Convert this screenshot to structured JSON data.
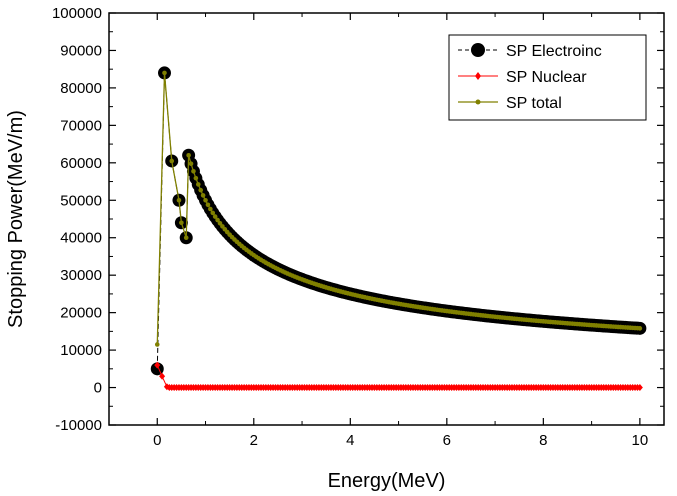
{
  "chart_data": {
    "type": "line",
    "title": "",
    "xlabel": "Energy(MeV)",
    "ylabel": "Stopping Power(MeV/m)",
    "xlim": [
      -1,
      10.5
    ],
    "ylim": [
      -10000,
      100000
    ],
    "xticks": [
      0,
      2,
      4,
      6,
      8,
      10
    ],
    "yticks": [
      -10000,
      0,
      10000,
      20000,
      30000,
      40000,
      50000,
      60000,
      70000,
      80000,
      90000,
      100000
    ],
    "xtick_labels": [
      "0",
      "2",
      "4",
      "6",
      "8",
      "10"
    ],
    "ytick_labels": [
      "-10000",
      "0",
      "10000",
      "20000",
      "30000",
      "40000",
      "50000",
      "60000",
      "70000",
      "80000",
      "90000",
      "100000"
    ],
    "legend_position": "top-right",
    "energy_step": 0.05,
    "energy_max": 10,
    "series": [
      {
        "name": "SP Electroinc",
        "color": "#000000",
        "marker": "circle",
        "line": "dash",
        "points": [
          [
            0,
            5000
          ],
          [
            0.15,
            84000
          ],
          [
            0.3,
            60500
          ],
          [
            0.45,
            50000
          ],
          [
            0.5,
            44000
          ],
          [
            0.6,
            40000
          ]
        ],
        "curve_constant": 50000
      },
      {
        "name": "SP Nuclear",
        "color": "#ff0000",
        "marker": "diamond",
        "line": "solid",
        "points": [
          [
            0,
            6000
          ],
          [
            0.1,
            3000
          ],
          [
            0.2,
            200
          ]
        ],
        "tail_value": 0
      },
      {
        "name": "SP total",
        "color": "#808000",
        "marker": "small-circle",
        "line": "solid",
        "points": [
          [
            0,
            11500
          ],
          [
            0.15,
            84000
          ],
          [
            0.3,
            60500
          ],
          [
            0.45,
            50000
          ],
          [
            0.5,
            44000
          ],
          [
            0.6,
            40000
          ]
        ],
        "curve_constant": 50000
      }
    ]
  }
}
